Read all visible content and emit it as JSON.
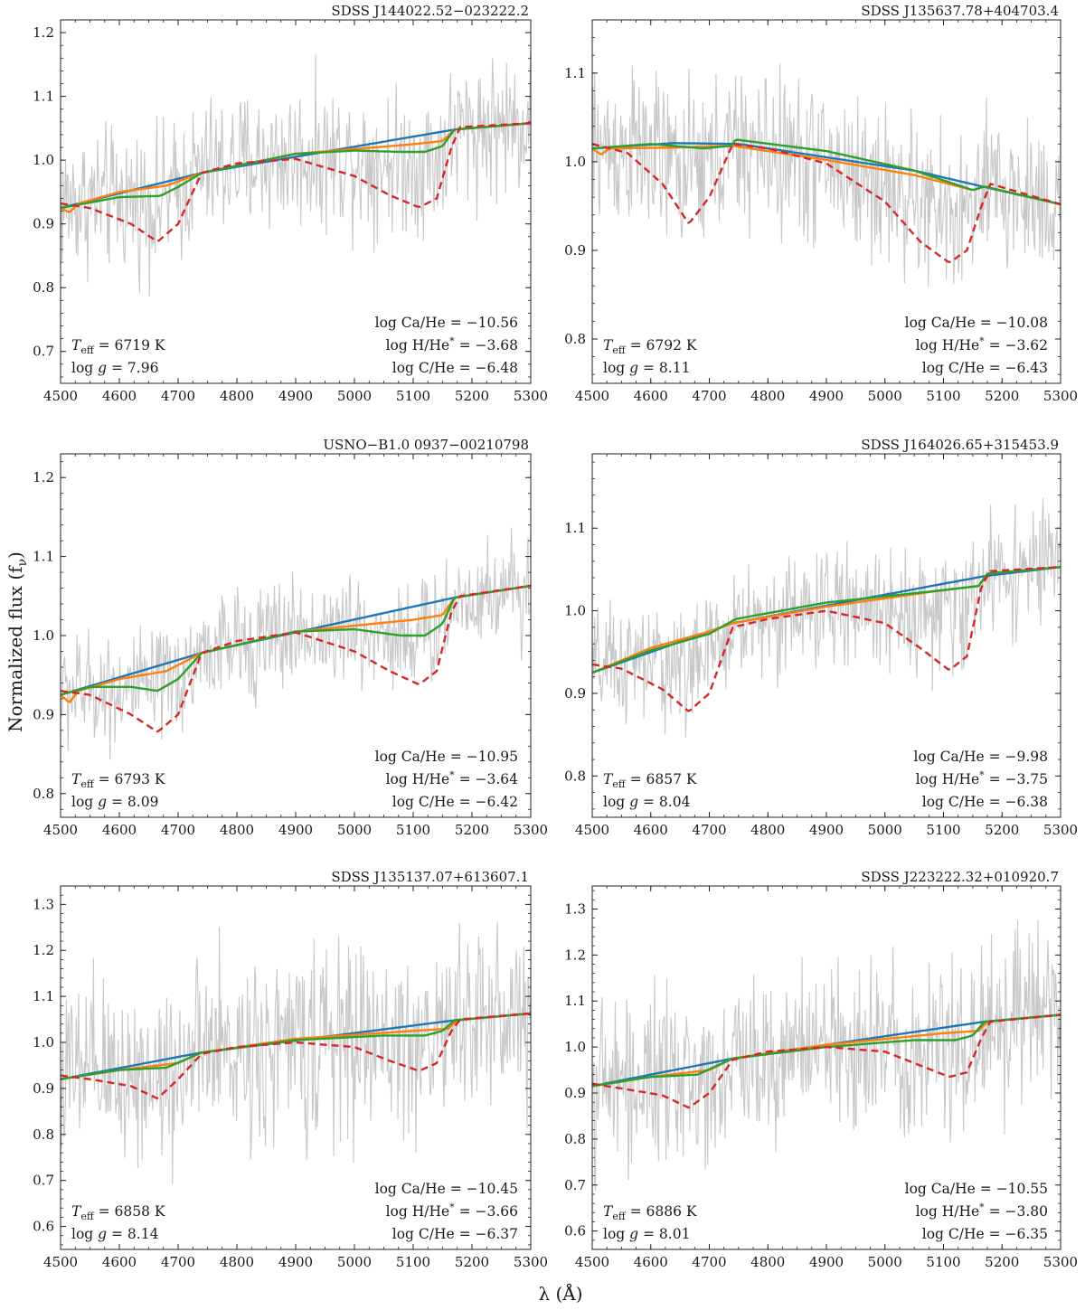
{
  "figure": {
    "ylabel": "Normalized flux (f",
    "ylabel_sub": "ν",
    "ylabel_close": ")",
    "xlabel": "λ (Å)"
  },
  "chart_data": [
    {
      "type": "line",
      "title": "SDSS J144022.52−023222.2",
      "xlim": [
        4500,
        5300
      ],
      "ylim": [
        0.65,
        1.22
      ],
      "xticks": [
        4500,
        4600,
        4700,
        4800,
        4900,
        5000,
        5100,
        5200,
        5300
      ],
      "yticks": [
        0.7,
        0.8,
        0.9,
        1.0,
        1.1,
        1.2
      ],
      "ytick_labels": [
        "0.7",
        "0.8",
        "0.9",
        "1.0",
        "1.1",
        "1.2"
      ],
      "noise_amp": 0.055,
      "params": {
        "teff": "T_eff = 6719 K",
        "logg": "log g = 7.96",
        "ca": "log Ca/He = −10.56",
        "h": "log H/He* = −3.68",
        "c": "log C/He = −6.48"
      },
      "series": [
        {
          "name": "observed",
          "color": "#c8c8c8",
          "x": [
            4500,
            4750,
            5170,
            5300
          ],
          "y": [
            0.93,
            0.985,
            1.045,
            1.06
          ]
        },
        {
          "name": "blue",
          "color": "#1f77b4",
          "x": [
            4500,
            4740,
            5170,
            5300
          ],
          "y": [
            0.925,
            0.98,
            1.048,
            1.058
          ]
        },
        {
          "name": "orange",
          "color": "#ff7f0e",
          "x": [
            4500,
            4515,
            4530,
            4600,
            4680,
            4740,
            4900,
            5100,
            5150,
            5170,
            5300
          ],
          "y": [
            0.925,
            0.918,
            0.932,
            0.95,
            0.96,
            0.98,
            1.01,
            1.025,
            1.03,
            1.048,
            1.058
          ]
        },
        {
          "name": "green",
          "color": "#2ca02c",
          "x": [
            4500,
            4600,
            4670,
            4700,
            4740,
            4900,
            5000,
            5080,
            5120,
            5150,
            5170,
            5300
          ],
          "y": [
            0.925,
            0.942,
            0.944,
            0.958,
            0.98,
            1.01,
            1.015,
            1.013,
            1.013,
            1.022,
            1.048,
            1.058
          ]
        },
        {
          "name": "red-dashed",
          "color": "#d62728",
          "x": [
            4500,
            4550,
            4620,
            4665,
            4700,
            4740,
            4800,
            4900,
            5000,
            5060,
            5110,
            5140,
            5165,
            5180,
            5300
          ],
          "y": [
            0.932,
            0.925,
            0.9,
            0.872,
            0.9,
            0.98,
            0.995,
            1.002,
            0.975,
            0.945,
            0.926,
            0.94,
            1.02,
            1.052,
            1.058
          ]
        }
      ]
    },
    {
      "type": "line",
      "title": "SDSS J135637.78+404703.4",
      "xlim": [
        4500,
        5300
      ],
      "ylim": [
        0.75,
        1.16
      ],
      "xticks": [
        4500,
        4600,
        4700,
        4800,
        4900,
        5000,
        5100,
        5200,
        5300
      ],
      "yticks": [
        0.8,
        0.9,
        1.0,
        1.1
      ],
      "ytick_labels": [
        "0.8",
        "0.9",
        "1.0",
        "1.1"
      ],
      "noise_amp": 0.045,
      "params": {
        "teff": "T_eff = 6792 K",
        "logg": "log g = 8.11",
        "ca": "log Ca/He = −10.08",
        "h": "log H/He* = −3.62",
        "c": "log C/He = −6.43"
      },
      "series": [
        {
          "name": "observed",
          "color": "#c8c8c8",
          "x": [
            4500,
            4700,
            4900,
            5170,
            5300
          ],
          "y": [
            1.015,
            1.02,
            1.0,
            0.965,
            0.955
          ]
        },
        {
          "name": "blue",
          "color": "#1f77b4",
          "x": [
            4500,
            4640,
            4750,
            4900,
            5050,
            5160,
            5300
          ],
          "y": [
            1.015,
            1.021,
            1.02,
            1.005,
            0.99,
            0.973,
            0.952
          ]
        },
        {
          "name": "orange",
          "color": "#ff7f0e",
          "x": [
            4500,
            4515,
            4530,
            4650,
            4740,
            4900,
            5050,
            5150,
            5170,
            5300
          ],
          "y": [
            1.015,
            1.008,
            1.015,
            1.016,
            1.018,
            1.002,
            0.985,
            0.968,
            0.972,
            0.952
          ]
        },
        {
          "name": "green",
          "color": "#2ca02c",
          "x": [
            4500,
            4600,
            4690,
            4738,
            4745,
            4900,
            5050,
            5150,
            5170,
            5300
          ],
          "y": [
            1.015,
            1.02,
            1.015,
            1.018,
            1.025,
            1.012,
            0.99,
            0.968,
            0.972,
            0.952
          ]
        },
        {
          "name": "red-dashed",
          "color": "#d62728",
          "x": [
            4500,
            4560,
            4620,
            4665,
            4700,
            4740,
            4800,
            4900,
            5000,
            5060,
            5110,
            5140,
            5165,
            5180,
            5300
          ],
          "y": [
            1.02,
            1.01,
            0.975,
            0.93,
            0.96,
            1.02,
            1.015,
            0.998,
            0.955,
            0.91,
            0.886,
            0.9,
            0.95,
            0.975,
            0.952
          ]
        }
      ]
    },
    {
      "type": "line",
      "title": "USNO−B1.0 0937−00210798",
      "xlim": [
        4500,
        5300
      ],
      "ylim": [
        0.77,
        1.23
      ],
      "xticks": [
        4500,
        4600,
        4700,
        4800,
        4900,
        5000,
        5100,
        5200,
        5300
      ],
      "yticks": [
        0.8,
        0.9,
        1.0,
        1.1,
        1.2
      ],
      "ytick_labels": [
        "0.8",
        "0.9",
        "1.0",
        "1.1",
        "1.2"
      ],
      "noise_amp": 0.035,
      "params": {
        "teff": "T_eff = 6793 K",
        "logg": "log g = 8.09",
        "ca": "log Ca/He = −10.95",
        "h": "log H/He* = −3.64",
        "c": "log C/He = −6.42"
      },
      "series": [
        {
          "name": "observed",
          "color": "#c8c8c8",
          "x": [
            4500,
            4750,
            5170,
            5300
          ],
          "y": [
            0.925,
            0.98,
            1.045,
            1.065
          ]
        },
        {
          "name": "blue",
          "color": "#1f77b4",
          "x": [
            4500,
            4740,
            5170,
            5300
          ],
          "y": [
            0.925,
            0.978,
            1.048,
            1.063
          ]
        },
        {
          "name": "orange",
          "color": "#ff7f0e",
          "x": [
            4500,
            4515,
            4530,
            4600,
            4680,
            4740,
            4900,
            5100,
            5150,
            5170,
            5300
          ],
          "y": [
            0.925,
            0.915,
            0.93,
            0.945,
            0.955,
            0.978,
            1.005,
            1.02,
            1.026,
            1.048,
            1.063
          ]
        },
        {
          "name": "green",
          "color": "#2ca02c",
          "x": [
            4500,
            4550,
            4620,
            4665,
            4700,
            4740,
            4900,
            5000,
            5080,
            5120,
            5150,
            5170,
            5300
          ],
          "y": [
            0.925,
            0.935,
            0.935,
            0.93,
            0.945,
            0.978,
            1.005,
            1.008,
            1.0,
            1.0,
            1.015,
            1.048,
            1.063
          ]
        },
        {
          "name": "red-dashed",
          "color": "#d62728",
          "x": [
            4500,
            4550,
            4620,
            4665,
            4700,
            4740,
            4800,
            4900,
            5000,
            5060,
            5110,
            5140,
            5165,
            5180,
            5300
          ],
          "y": [
            0.93,
            0.925,
            0.9,
            0.878,
            0.9,
            0.978,
            0.993,
            1.004,
            0.98,
            0.955,
            0.938,
            0.955,
            1.03,
            1.05,
            1.063
          ]
        }
      ]
    },
    {
      "type": "line",
      "title": "SDSS J164026.65+315453.9",
      "xlim": [
        4500,
        5300
      ],
      "ylim": [
        0.75,
        1.19
      ],
      "xticks": [
        4500,
        4600,
        4700,
        4800,
        4900,
        5000,
        5100,
        5200,
        5300
      ],
      "yticks": [
        0.8,
        0.9,
        1.0,
        1.1
      ],
      "ytick_labels": [
        "0.8",
        "0.9",
        "1.0",
        "1.1"
      ],
      "noise_amp": 0.035,
      "params": {
        "teff": "T_eff = 6857 K",
        "logg": "log g = 8.04",
        "ca": "log Ca/He = −9.98",
        "h": "log H/He* = −3.75",
        "c": "log C/He = −6.38"
      },
      "series": [
        {
          "name": "observed",
          "color": "#c8c8c8",
          "x": [
            4500,
            4750,
            5170,
            5300
          ],
          "y": [
            0.925,
            0.985,
            1.04,
            1.06
          ]
        },
        {
          "name": "blue",
          "color": "#1f77b4",
          "x": [
            4500,
            4740,
            5170,
            5300
          ],
          "y": [
            0.925,
            0.985,
            1.042,
            1.053
          ]
        },
        {
          "name": "orange",
          "color": "#ff7f0e",
          "x": [
            4500,
            4600,
            4700,
            4740,
            4900,
            5100,
            5160,
            5175,
            5300
          ],
          "y": [
            0.925,
            0.955,
            0.975,
            0.985,
            1.005,
            1.025,
            1.03,
            1.045,
            1.053
          ]
        },
        {
          "name": "green",
          "color": "#2ca02c",
          "x": [
            4500,
            4600,
            4700,
            4745,
            4900,
            5100,
            5160,
            5175,
            5300
          ],
          "y": [
            0.925,
            0.952,
            0.972,
            0.99,
            1.01,
            1.025,
            1.03,
            1.045,
            1.053
          ]
        },
        {
          "name": "red-dashed",
          "color": "#d62728",
          "x": [
            4500,
            4550,
            4620,
            4665,
            4700,
            4740,
            4800,
            4900,
            5000,
            5060,
            5110,
            5140,
            5165,
            5180,
            5300
          ],
          "y": [
            0.935,
            0.93,
            0.905,
            0.878,
            0.9,
            0.98,
            0.99,
            1.0,
            0.985,
            0.955,
            0.928,
            0.945,
            1.03,
            1.048,
            1.053
          ]
        }
      ]
    },
    {
      "type": "line",
      "title": "SDSS J135137.07+613607.1",
      "xlim": [
        4500,
        5300
      ],
      "ylim": [
        0.55,
        1.34
      ],
      "xticks": [
        4500,
        4600,
        4700,
        4800,
        4900,
        5000,
        5100,
        5200,
        5300
      ],
      "yticks": [
        0.6,
        0.7,
        0.8,
        0.9,
        1.0,
        1.1,
        1.2,
        1.3
      ],
      "ytick_labels": [
        "0.6",
        "0.7",
        "0.8",
        "0.9",
        "1.0",
        "1.1",
        "1.2",
        "1.3"
      ],
      "noise_amp": 0.1,
      "params": {
        "teff": "T_eff = 6858 K",
        "logg": "log g = 8.14",
        "ca": "log Ca/He = −10.45",
        "h": "log H/He* = −3.66",
        "c": "log C/He = −6.37"
      },
      "series": [
        {
          "name": "observed",
          "color": "#c8c8c8",
          "x": [
            4500,
            4750,
            5170,
            5300
          ],
          "y": [
            0.925,
            0.975,
            1.045,
            1.065
          ]
        },
        {
          "name": "blue",
          "color": "#1f77b4",
          "x": [
            4500,
            4740,
            5170,
            5300
          ],
          "y": [
            0.92,
            0.978,
            1.048,
            1.063
          ]
        },
        {
          "name": "orange",
          "color": "#ff7f0e",
          "x": [
            4500,
            4600,
            4700,
            4740,
            4900,
            5100,
            5160,
            5175,
            5300
          ],
          "y": [
            0.92,
            0.94,
            0.955,
            0.978,
            1.008,
            1.025,
            1.03,
            1.048,
            1.063
          ]
        },
        {
          "name": "green",
          "color": "#2ca02c",
          "x": [
            4500,
            4600,
            4680,
            4740,
            4900,
            5050,
            5120,
            5150,
            5170,
            5300
          ],
          "y": [
            0.92,
            0.94,
            0.945,
            0.978,
            1.005,
            1.015,
            1.015,
            1.025,
            1.048,
            1.063
          ]
        },
        {
          "name": "red-dashed",
          "color": "#d62728",
          "x": [
            4500,
            4550,
            4620,
            4665,
            4700,
            4740,
            4800,
            4900,
            5000,
            5060,
            5110,
            5140,
            5165,
            5180,
            5300
          ],
          "y": [
            0.928,
            0.92,
            0.905,
            0.878,
            0.92,
            0.975,
            0.99,
            1.0,
            0.99,
            0.96,
            0.938,
            0.955,
            1.025,
            1.05,
            1.063
          ]
        }
      ]
    },
    {
      "type": "line",
      "title": "SDSS J223222.32+010920.7",
      "xlim": [
        4500,
        5300
      ],
      "ylim": [
        0.56,
        1.35
      ],
      "xticks": [
        4500,
        4600,
        4700,
        4800,
        4900,
        5000,
        5100,
        5200,
        5300
      ],
      "yticks": [
        0.6,
        0.7,
        0.8,
        0.9,
        1.0,
        1.1,
        1.2,
        1.3
      ],
      "ytick_labels": [
        "0.6",
        "0.7",
        "0.8",
        "0.9",
        "1.0",
        "1.1",
        "1.2",
        "1.3"
      ],
      "noise_amp": 0.09,
      "params": {
        "teff": "T_eff = 6886 K",
        "logg": "log g = 8.01",
        "ca": "log Ca/He = −10.55",
        "h": "log H/He* = −3.80",
        "c": "log C/He = −6.35"
      },
      "series": [
        {
          "name": "observed",
          "color": "#c8c8c8",
          "x": [
            4500,
            4750,
            5170,
            5300
          ],
          "y": [
            0.915,
            0.97,
            1.05,
            1.07
          ]
        },
        {
          "name": "blue",
          "color": "#1f77b4",
          "x": [
            4500,
            4740,
            5170,
            5300
          ],
          "y": [
            0.915,
            0.975,
            1.055,
            1.07
          ]
        },
        {
          "name": "orange",
          "color": "#ff7f0e",
          "x": [
            4500,
            4600,
            4700,
            4740,
            4900,
            5100,
            5160,
            5175,
            5300
          ],
          "y": [
            0.915,
            0.935,
            0.95,
            0.975,
            1.005,
            1.03,
            1.035,
            1.055,
            1.07
          ]
        },
        {
          "name": "green",
          "color": "#2ca02c",
          "x": [
            4500,
            4600,
            4680,
            4740,
            4900,
            5050,
            5120,
            5150,
            5170,
            5300
          ],
          "y": [
            0.915,
            0.935,
            0.94,
            0.975,
            1.0,
            1.015,
            1.015,
            1.025,
            1.055,
            1.07
          ]
        },
        {
          "name": "red-dashed",
          "color": "#d62728",
          "x": [
            4500,
            4550,
            4620,
            4665,
            4700,
            4740,
            4800,
            4900,
            5000,
            5060,
            5110,
            5140,
            5165,
            5180,
            5300
          ],
          "y": [
            0.92,
            0.91,
            0.895,
            0.868,
            0.9,
            0.972,
            0.99,
            1.0,
            0.99,
            0.96,
            0.935,
            0.945,
            1.02,
            1.055,
            1.07
          ]
        }
      ]
    }
  ]
}
